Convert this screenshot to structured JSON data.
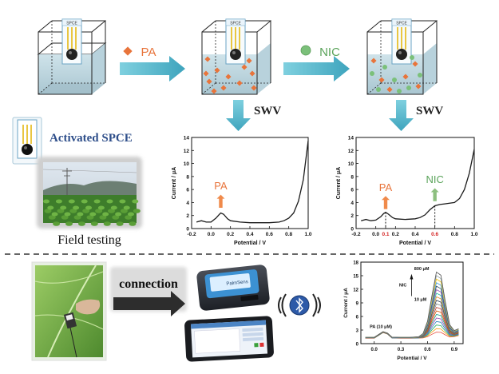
{
  "labels": {
    "spce_chip": "SPCE",
    "pa": "PA",
    "nic": "NIC",
    "swv": "SWV",
    "activated_spce": "Activated SPCE",
    "field_testing": "Field testing",
    "connection": "connection",
    "device_brand": "PalmSens"
  },
  "chart_pa": {
    "type": "line",
    "xlabel": "Potential / V",
    "ylabel": "Current / μA",
    "xlim": [
      -0.2,
      1.0
    ],
    "ylim": [
      0,
      14
    ],
    "xticks": [
      "-0.2",
      "0.0",
      "0.2",
      "0.4",
      "0.6",
      "0.8",
      "1.0"
    ],
    "yticks": [
      "0",
      "2",
      "4",
      "6",
      "8",
      "10",
      "12",
      "14"
    ],
    "peak_label": "PA",
    "x": [
      -0.15,
      -0.1,
      -0.05,
      0.0,
      0.05,
      0.08,
      0.1,
      0.13,
      0.17,
      0.2,
      0.3,
      0.4,
      0.5,
      0.6,
      0.7,
      0.75,
      0.8,
      0.85,
      0.9,
      0.95,
      1.0
    ],
    "y": [
      1.0,
      1.2,
      1.0,
      1.0,
      1.6,
      2.1,
      2.4,
      2.2,
      1.5,
      1.2,
      1.0,
      0.9,
      0.9,
      0.9,
      1.0,
      1.2,
      1.6,
      2.4,
      4.2,
      7.5,
      13.5
    ],
    "color": "#1a1a1a",
    "arrow_color": "#f08a4b"
  },
  "chart_nic": {
    "type": "line",
    "xlabel": "Potential / V",
    "ylabel": "Current / μA",
    "xlim": [
      -0.2,
      1.0
    ],
    "ylim": [
      0,
      14
    ],
    "xticks": [
      "-0.2",
      "0.0",
      "0.1",
      "0.2",
      "0.4",
      "0.6",
      "0.8",
      "1.0"
    ],
    "xtick_values": [
      -0.2,
      0.0,
      0.1,
      0.2,
      0.4,
      0.6,
      0.8,
      1.0
    ],
    "red_ticks": [
      "0.1",
      "0.6"
    ],
    "yticks": [
      "0",
      "2",
      "4",
      "6",
      "8",
      "10",
      "12",
      "14"
    ],
    "peak_labels": [
      "PA",
      "NIC"
    ],
    "x": [
      -0.15,
      -0.1,
      -0.05,
      0.0,
      0.05,
      0.08,
      0.1,
      0.13,
      0.17,
      0.2,
      0.3,
      0.4,
      0.45,
      0.5,
      0.55,
      0.6,
      0.65,
      0.7,
      0.8,
      0.85,
      0.9,
      0.95,
      1.0
    ],
    "y": [
      1.2,
      1.4,
      1.2,
      1.3,
      1.8,
      2.3,
      2.5,
      2.2,
      1.7,
      1.5,
      1.4,
      1.5,
      1.7,
      2.1,
      2.9,
      3.5,
      3.7,
      3.8,
      4.0,
      4.6,
      6.0,
      8.5,
      12.2
    ],
    "color": "#1a1a1a",
    "pa_arrow_color": "#f08a4b",
    "nic_arrow_color": "#8dbf7f"
  },
  "chart_overlay": {
    "type": "line",
    "xlabel": "Potential / V",
    "ylabel": "Current / μA",
    "xlim": [
      -0.15,
      1.0
    ],
    "ylim": [
      0,
      18
    ],
    "xticks": [
      "0.0",
      "0.3",
      "0.6",
      "0.9"
    ],
    "yticks": [
      "0",
      "3",
      "6",
      "9",
      "12",
      "15",
      "18"
    ],
    "annotations": {
      "top": "800 μM",
      "species": "NIC",
      "bottom": "10 μM",
      "pa": "PA (10 μM)"
    },
    "x": [
      -0.1,
      0.0,
      0.1,
      0.15,
      0.2,
      0.3,
      0.4,
      0.5,
      0.55,
      0.6,
      0.65,
      0.7,
      0.75,
      0.8,
      0.85,
      0.9,
      0.95
    ],
    "series_peaks": [
      2.6,
      3.4,
      4.2,
      5.0,
      5.8,
      6.6,
      7.4,
      8.2,
      9.0,
      9.8,
      10.6,
      11.4,
      12.2,
      13.0,
      13.8,
      14.6,
      15.4,
      16.2
    ],
    "palette": [
      "#e84c3d",
      "#f39c12",
      "#27ae60",
      "#2980b9",
      "#8e44ad",
      "#16a085",
      "#d35400",
      "#c0392b",
      "#7f8c8d",
      "#2c3e50",
      "#e67e22",
      "#1abc9c",
      "#9b59b6",
      "#34495e",
      "#3498db",
      "#f1c40f",
      "#95a5a6",
      "#555555"
    ]
  },
  "colors": {
    "arrow_blue": "#4fb3c9",
    "pa_marker": "#e8743b",
    "nic_marker": "#7bc07a",
    "label_blue": "#2e4e8a",
    "dashed_line": "#333333"
  }
}
